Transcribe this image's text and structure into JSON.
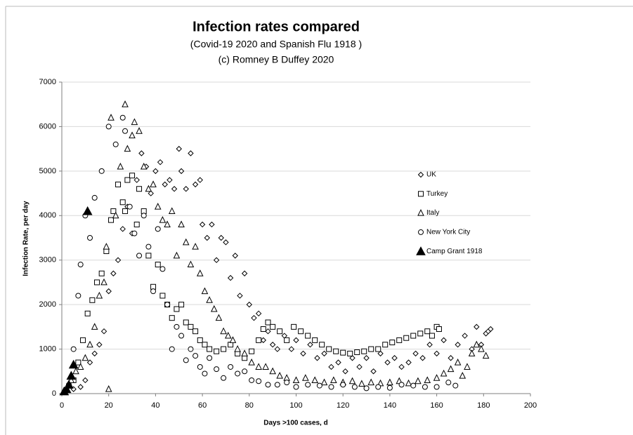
{
  "chart_data": {
    "type": "scatter",
    "title": "Infection rates compared",
    "subtitle": "(Covid-19 2020  and Spanish Flu 1918 )",
    "subtitle2": "(c) Romney B Duffey 2020",
    "x_label": "Days >100 cases, d",
    "y_label": "Infection Rate, per day",
    "xlim": [
      0,
      200
    ],
    "xticks": [
      0,
      20,
      40,
      60,
      80,
      100,
      120,
      140,
      160,
      180,
      200
    ],
    "ylim": [
      0,
      7000
    ],
    "yticks": [
      0,
      1000,
      2000,
      3000,
      4000,
      5000,
      6000,
      7000
    ],
    "grid": true,
    "legend": "right",
    "series": [
      {
        "name": "UK",
        "marker": "diamond",
        "color": "#000000",
        "x": [
          5,
          8,
          10,
          12,
          14,
          16,
          18,
          20,
          22,
          24,
          26,
          28,
          30,
          32,
          34,
          36,
          38,
          40,
          42,
          44,
          46,
          48,
          50,
          51,
          53,
          55,
          57,
          59,
          60,
          62,
          64,
          66,
          68,
          70,
          72,
          74,
          76,
          78,
          80,
          82,
          84,
          86,
          88,
          90,
          92,
          95,
          98,
          100,
          103,
          106,
          109,
          112,
          115,
          118,
          121,
          124,
          127,
          130,
          133,
          136,
          139,
          142,
          145,
          148,
          151,
          154,
          157,
          160,
          163,
          166,
          169,
          172,
          175,
          177,
          179,
          181,
          182,
          183
        ],
        "values": [
          100,
          150,
          300,
          700,
          900,
          1100,
          1400,
          2300,
          2700,
          3000,
          3700,
          4200,
          3600,
          4800,
          5400,
          5100,
          4500,
          5000,
          5200,
          4700,
          4800,
          4600,
          5500,
          5000,
          4600,
          5400,
          4700,
          4800,
          3800,
          3500,
          3800,
          3000,
          3500,
          3400,
          2600,
          3100,
          2200,
          2700,
          2000,
          1700,
          1800,
          1200,
          1400,
          1100,
          1000,
          1300,
          1000,
          1200,
          900,
          1100,
          800,
          900,
          600,
          700,
          500,
          800,
          600,
          800,
          500,
          900,
          700,
          800,
          600,
          700,
          900,
          800,
          1100,
          900,
          1200,
          800,
          1100,
          1300,
          1000,
          1500,
          1100,
          1350,
          1400,
          1450
        ]
      },
      {
        "name": "Turkey",
        "marker": "square",
        "color": "#000000",
        "x": [
          5,
          7,
          9,
          11,
          13,
          15,
          17,
          19,
          21,
          22,
          24,
          26,
          27,
          28,
          30,
          32,
          33,
          35,
          37,
          39,
          41,
          43,
          45,
          47,
          49,
          51,
          53,
          55,
          57,
          59,
          61,
          63,
          66,
          69,
          72,
          75,
          78,
          81,
          84,
          86,
          88,
          90,
          93,
          96,
          99,
          102,
          105,
          108,
          111,
          114,
          117,
          120,
          123,
          126,
          129,
          132,
          135,
          138,
          141,
          144,
          147,
          150,
          153,
          156,
          158,
          160,
          161
        ],
        "values": [
          300,
          700,
          1200,
          1800,
          2100,
          2500,
          2700,
          3200,
          3900,
          4100,
          4700,
          4300,
          4100,
          4800,
          4900,
          3800,
          4600,
          4100,
          3100,
          2400,
          2900,
          2200,
          2000,
          1700,
          1900,
          2000,
          1600,
          1500,
          1400,
          1200,
          1100,
          1000,
          950,
          1000,
          1100,
          900,
          800,
          950,
          1200,
          1450,
          1600,
          1500,
          1400,
          1200,
          1500,
          1400,
          1300,
          1200,
          1100,
          1000,
          950,
          920,
          900,
          930,
          950,
          1000,
          1000,
          1100,
          1150,
          1200,
          1250,
          1300,
          1350,
          1400,
          1300,
          1500,
          1450
        ]
      },
      {
        "name": "Italy",
        "marker": "triangle",
        "color": "#000000",
        "x": [
          2,
          4,
          6,
          8,
          10,
          12,
          14,
          16,
          18,
          19,
          20,
          21,
          23,
          25,
          27,
          28,
          30,
          31,
          33,
          35,
          37,
          39,
          41,
          43,
          45,
          47,
          49,
          51,
          53,
          55,
          57,
          59,
          61,
          63,
          65,
          67,
          69,
          71,
          73,
          75,
          78,
          81,
          84,
          87,
          90,
          93,
          96,
          100,
          104,
          108,
          112,
          116,
          120,
          124,
          128,
          132,
          136,
          140,
          144,
          148,
          152,
          156,
          160,
          163,
          166,
          169,
          171,
          173,
          175,
          177,
          179,
          181
        ],
        "values": [
          100,
          300,
          500,
          600,
          800,
          1100,
          1500,
          2200,
          2500,
          3300,
          100,
          6200,
          4000,
          5100,
          6500,
          5500,
          5800,
          6100,
          5900,
          5100,
          4600,
          4700,
          4200,
          3900,
          3800,
          4100,
          3100,
          3800,
          3400,
          2900,
          3300,
          2700,
          2300,
          2100,
          1900,
          1700,
          1400,
          1300,
          1200,
          1000,
          900,
          700,
          600,
          600,
          500,
          400,
          350,
          300,
          350,
          300,
          250,
          300,
          250,
          280,
          220,
          250,
          230,
          250,
          280,
          230,
          280,
          300,
          350,
          450,
          550,
          700,
          400,
          600,
          900,
          1100,
          1000,
          850
        ]
      },
      {
        "name": "New York City",
        "marker": "circle",
        "color": "#000000",
        "x": [
          3,
          5,
          7,
          8,
          10,
          12,
          14,
          17,
          20,
          23,
          26,
          27,
          29,
          31,
          33,
          35,
          37,
          39,
          41,
          43,
          45,
          47,
          49,
          51,
          53,
          55,
          57,
          59,
          61,
          63,
          66,
          69,
          72,
          75,
          78,
          81,
          84,
          88,
          92,
          96,
          100,
          105,
          110,
          115,
          120,
          125,
          130,
          135,
          140,
          145,
          150,
          155,
          160,
          165,
          168
        ],
        "values": [
          200,
          1000,
          2200,
          2900,
          4000,
          3500,
          4400,
          5000,
          6000,
          5600,
          6200,
          5900,
          4200,
          3600,
          3100,
          4000,
          3300,
          2300,
          3700,
          2800,
          2000,
          1000,
          1500,
          1300,
          750,
          1000,
          850,
          600,
          450,
          800,
          550,
          350,
          600,
          450,
          500,
          300,
          280,
          200,
          200,
          250,
          150,
          200,
          180,
          150,
          200,
          150,
          120,
          150,
          130,
          200,
          180,
          150,
          150,
          250,
          180
        ]
      },
      {
        "name": "Camp Grant 1918",
        "marker": "filled-triangle",
        "color": "#000000",
        "x": [
          1,
          2,
          3,
          4,
          5,
          11
        ],
        "values": [
          50,
          100,
          200,
          400,
          650,
          4100
        ]
      }
    ]
  }
}
